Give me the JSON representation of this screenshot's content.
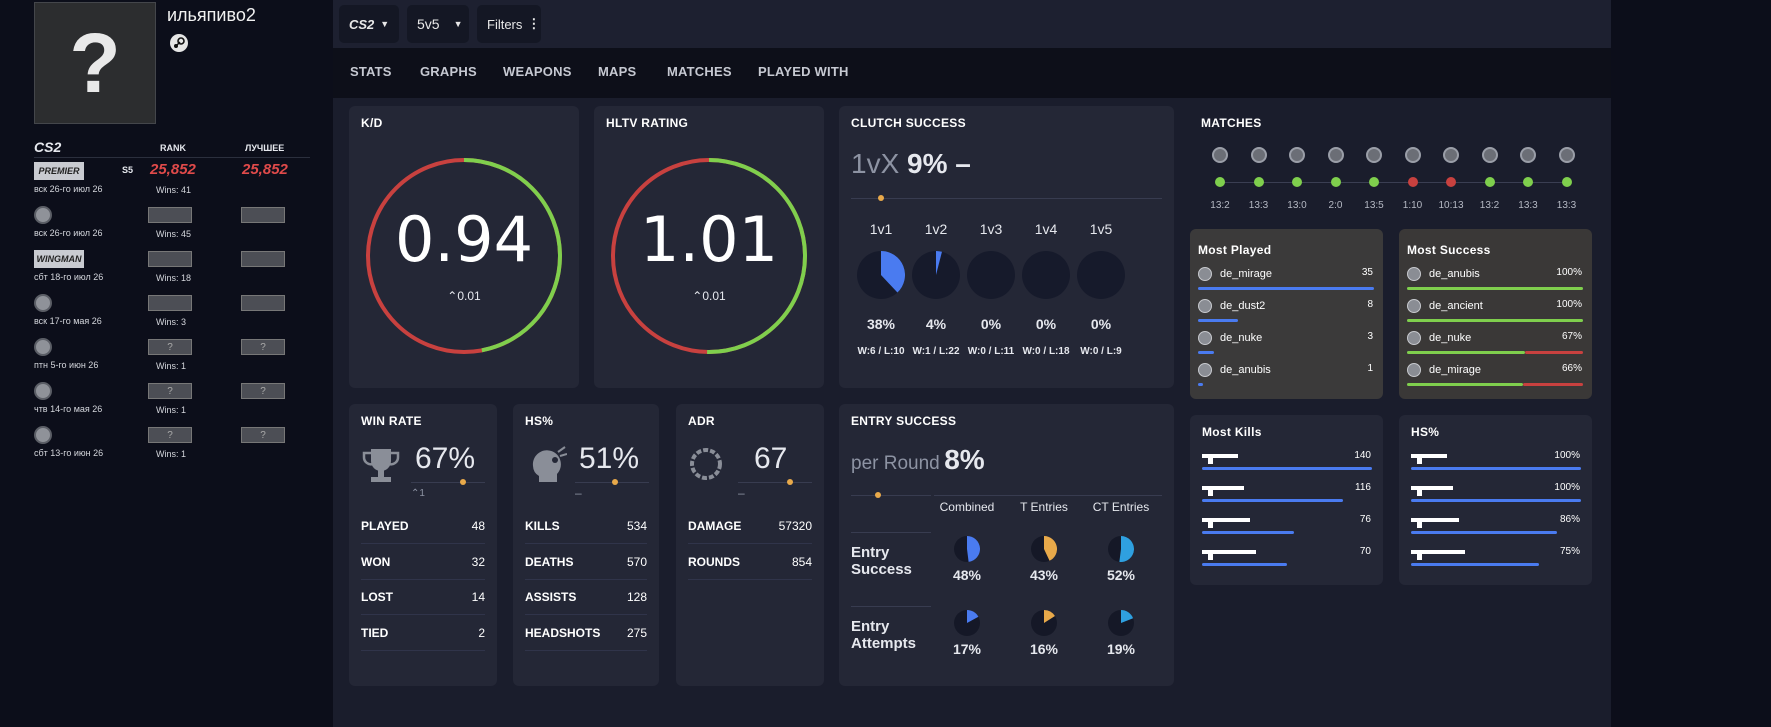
{
  "profile": {
    "username": "ильяпиво2",
    "avatar_glyph": "?"
  },
  "ranks": {
    "game_logo": "CS2",
    "col_rank": "RANK",
    "col_best": "ЛУЧШЕЕ",
    "rows": [
      {
        "icon": "premier-icon",
        "icon_label": "PREMIER",
        "season": "S5",
        "date": "вск 26-го июл 26",
        "rank": "25,852",
        "best": "25,852",
        "wins": "Wins: 41"
      },
      {
        "icon": "global-elite-icon",
        "date": "вск 26-го июл 26",
        "rank": "",
        "best": "",
        "wins": "Wins: 45"
      },
      {
        "icon": "wingman-icon",
        "icon_label": "WINGMAN",
        "date": "сбт 18-го июл 26",
        "rank": "",
        "best": "",
        "wins": "Wins: 18"
      },
      {
        "icon": "map-icon",
        "date": "вск 17-го мая 26",
        "rank": "",
        "best": "",
        "wins": "Wins: 3"
      },
      {
        "icon": "map-icon",
        "date": "птн 5-го июн 26",
        "rank": "?",
        "best": "?",
        "wins": "Wins: 1"
      },
      {
        "icon": "map-icon",
        "date": "чтв 14-го мая 26",
        "rank": "?",
        "best": "?",
        "wins": "Wins: 1"
      },
      {
        "icon": "map-icon",
        "date": "сбт 13-го июн 26",
        "rank": "?",
        "best": "?",
        "wins": "Wins: 1"
      }
    ]
  },
  "toolbar": {
    "game": "CS2",
    "mode": "5v5",
    "filters": "Filters"
  },
  "tabs": [
    "STATS",
    "GRAPHS",
    "WEAPONS",
    "MAPS",
    "MATCHES",
    "PLAYED WITH"
  ],
  "kd": {
    "title": "K/D",
    "value": "0.94",
    "delta": "0.01",
    "fraction": 0.47
  },
  "hltv": {
    "title": "HLTV RATING",
    "value": "1.01",
    "delta": "0.01",
    "fraction": 0.503
  },
  "clutch": {
    "title": "CLUTCH SUCCESS",
    "prefix": "1vX",
    "value": "9%",
    "trend": "–",
    "items": [
      {
        "label": "1v1",
        "pct": "38%",
        "fraction": 0.38,
        "wl": "W:6 / L:10"
      },
      {
        "label": "1v2",
        "pct": "4%",
        "fraction": 0.04,
        "wl": "W:1 / L:22"
      },
      {
        "label": "1v3",
        "pct": "0%",
        "fraction": 0,
        "wl": "W:0 / L:11"
      },
      {
        "label": "1v4",
        "pct": "0%",
        "fraction": 0,
        "wl": "W:0 / L:18"
      },
      {
        "label": "1v5",
        "pct": "0%",
        "fraction": 0,
        "wl": "W:0 / L:9"
      }
    ]
  },
  "matches": {
    "title": "MATCHES",
    "list": [
      {
        "result": "win",
        "score": "13:2"
      },
      {
        "result": "win",
        "score": "13:3"
      },
      {
        "result": "win",
        "score": "13:0"
      },
      {
        "result": "win",
        "score": "2:0"
      },
      {
        "result": "win",
        "score": "13:5"
      },
      {
        "result": "loss",
        "score": "1:10"
      },
      {
        "result": "loss",
        "score": "10:13"
      },
      {
        "result": "win",
        "score": "13:2"
      },
      {
        "result": "win",
        "score": "13:3"
      },
      {
        "result": "win",
        "score": "13:3"
      }
    ]
  },
  "most_played": {
    "title": "Most Played",
    "items": [
      {
        "map": "de_mirage",
        "value": "35",
        "fraction": 1.0
      },
      {
        "map": "de_dust2",
        "value": "8",
        "fraction": 0.23
      },
      {
        "map": "de_nuke",
        "value": "3",
        "fraction": 0.09
      },
      {
        "map": "de_anubis",
        "value": "1",
        "fraction": 0.03
      }
    ]
  },
  "most_success": {
    "title": "Most Success",
    "items": [
      {
        "map": "de_anubis",
        "value": "100%",
        "fraction": 1.0
      },
      {
        "map": "de_ancient",
        "value": "100%",
        "fraction": 1.0
      },
      {
        "map": "de_nuke",
        "value": "67%",
        "fraction": 0.67
      },
      {
        "map": "de_mirage",
        "value": "66%",
        "fraction": 0.66
      }
    ]
  },
  "win_rate": {
    "title": "WIN RATE",
    "value": "67%",
    "delta": "1",
    "rows": [
      {
        "label": "PLAYED",
        "value": "48"
      },
      {
        "label": "WON",
        "value": "32"
      },
      {
        "label": "LOST",
        "value": "14"
      },
      {
        "label": "TIED",
        "value": "2"
      }
    ]
  },
  "hs": {
    "title": "HS%",
    "value": "51%",
    "trend": "–",
    "rows": [
      {
        "label": "KILLS",
        "value": "534"
      },
      {
        "label": "DEATHS",
        "value": "570"
      },
      {
        "label": "ASSISTS",
        "value": "128"
      },
      {
        "label": "HEADSHOTS",
        "value": "275"
      }
    ]
  },
  "adr": {
    "title": "ADR",
    "value": "67",
    "trend": "–",
    "rows": [
      {
        "label": "DAMAGE",
        "value": "57320"
      },
      {
        "label": "ROUNDS",
        "value": "854"
      }
    ]
  },
  "entry": {
    "title": "ENTRY SUCCESS",
    "prefix": "per Round",
    "value": "8%",
    "columns": [
      "Combined",
      "T Entries",
      "CT Entries"
    ],
    "rows": [
      {
        "label_1": "Entry",
        "label_2": "Success",
        "cells": [
          {
            "pct": "48%",
            "fraction": 0.48
          },
          {
            "pct": "43%",
            "fraction": 0.43
          },
          {
            "pct": "52%",
            "fraction": 0.52
          }
        ]
      },
      {
        "label_1": "Entry",
        "label_2": "Attempts",
        "cells": [
          {
            "pct": "17%",
            "fraction": 0.17
          },
          {
            "pct": "16%",
            "fraction": 0.16
          },
          {
            "pct": "19%",
            "fraction": 0.19
          }
        ]
      }
    ],
    "colors": [
      "#4a7bf0",
      "#e8a94a",
      "#2fa0e0"
    ]
  },
  "most_kills": {
    "title": "Most Kills",
    "items": [
      {
        "weapon": "usp-icon",
        "value": "140",
        "fraction": 1.0
      },
      {
        "weapon": "ak47-icon",
        "value": "116",
        "fraction": 0.83
      },
      {
        "weapon": "m4a1-icon",
        "value": "76",
        "fraction": 0.54
      },
      {
        "weapon": "awp-icon",
        "value": "70",
        "fraction": 0.5
      }
    ]
  },
  "hs_weapons": {
    "title": "HS%",
    "items": [
      {
        "weapon": "m4a4-icon",
        "value": "100%",
        "fraction": 1.0
      },
      {
        "weapon": "m4a1s-icon",
        "value": "100%",
        "fraction": 1.0
      },
      {
        "weapon": "deagle-icon",
        "value": "86%",
        "fraction": 0.86
      },
      {
        "weapon": "glock-icon",
        "value": "75%",
        "fraction": 0.75
      }
    ]
  },
  "colors": {
    "green": "#7fcf4d",
    "red": "#c8413f",
    "blue": "#4a7bf0",
    "orange": "#e8a94a"
  }
}
